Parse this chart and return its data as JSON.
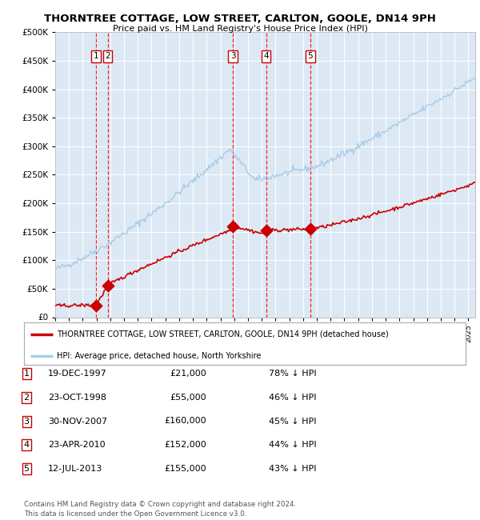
{
  "title": "THORNTREE COTTAGE, LOW STREET, CARLTON, GOOLE, DN14 9PH",
  "subtitle": "Price paid vs. HM Land Registry's House Price Index (HPI)",
  "bg_color": "#dce9f5",
  "grid_color": "#ffffff",
  "purchases": [
    {
      "date": 1997.96,
      "price": 21000,
      "label": "1"
    },
    {
      "date": 1998.81,
      "price": 55000,
      "label": "2"
    },
    {
      "date": 2007.91,
      "price": 160000,
      "label": "3"
    },
    {
      "date": 2010.31,
      "price": 152000,
      "label": "4"
    },
    {
      "date": 2013.53,
      "price": 155000,
      "label": "5"
    }
  ],
  "legend_entries": [
    "THORNTREE COTTAGE, LOW STREET, CARLTON, GOOLE, DN14 9PH (detached house)",
    "HPI: Average price, detached house, North Yorkshire"
  ],
  "table_rows": [
    [
      "1",
      "19-DEC-1997",
      "£21,000",
      "78% ↓ HPI"
    ],
    [
      "2",
      "23-OCT-1998",
      "£55,000",
      "46% ↓ HPI"
    ],
    [
      "3",
      "30-NOV-2007",
      "£160,000",
      "45% ↓ HPI"
    ],
    [
      "4",
      "23-APR-2010",
      "£152,000",
      "44% ↓ HPI"
    ],
    [
      "5",
      "12-JUL-2013",
      "£155,000",
      "43% ↓ HPI"
    ]
  ],
  "footer": "Contains HM Land Registry data © Crown copyright and database right 2024.\nThis data is licensed under the Open Government Licence v3.0.",
  "ylim": [
    0,
    500000
  ],
  "xlim_start": 1995.0,
  "xlim_end": 2025.5,
  "hpi_color": "#a8cce8",
  "price_color": "#cc0000",
  "label_box_color": "#cc0000"
}
